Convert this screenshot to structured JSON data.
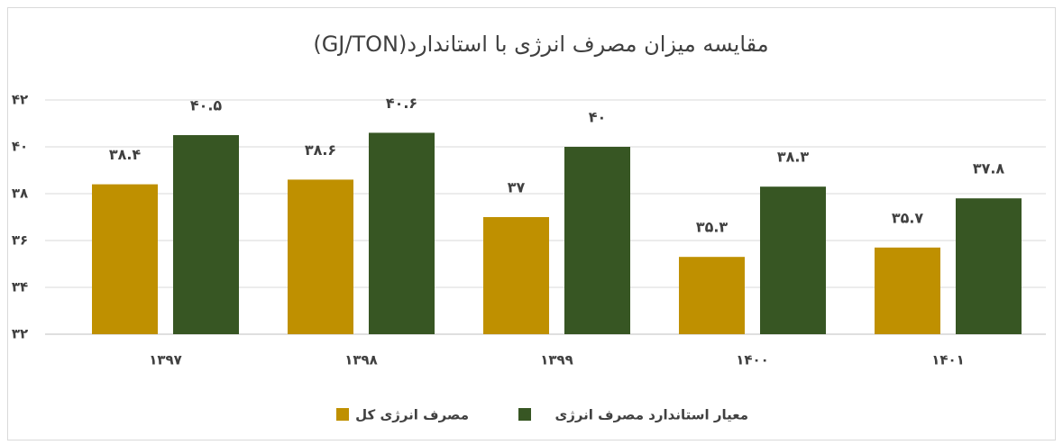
{
  "chart_data": {
    "type": "bar",
    "title": "مقایسه میزان مصرف انرژی با استاندارد(GJ/TON)",
    "categories": [
      "۱۳۹۷",
      "۱۳۹۸",
      "۱۳۹۹",
      "۱۴۰۰",
      "۱۴۰۱"
    ],
    "series": [
      {
        "name": "مصرف انرژی کل",
        "color": "#bf9000",
        "values": [
          38.4,
          38.6,
          37,
          35.3,
          35.7
        ],
        "value_labels": [
          "۳۸.۴",
          "۳۸.۶",
          "۳۷",
          "۳۵.۳",
          "۳۵.۷"
        ]
      },
      {
        "name": "معیار استاندارد مصرف انرژی",
        "color": "#375623",
        "values": [
          40.5,
          40.6,
          40,
          38.3,
          37.8
        ],
        "value_labels": [
          "۴۰.۵",
          "۴۰.۶",
          "۴۰",
          "۳۸.۳",
          "۳۷.۸"
        ]
      }
    ],
    "ylim": [
      32,
      42
    ],
    "yticks": [
      {
        "value": 32,
        "label": "۳۲"
      },
      {
        "value": 34,
        "label": "۳۴"
      },
      {
        "value": 36,
        "label": "۳۶"
      },
      {
        "value": 38,
        "label": "۳۸"
      },
      {
        "value": 40,
        "label": "۴۰"
      },
      {
        "value": 42,
        "label": "۴۲"
      }
    ],
    "grid": true,
    "legend": "bottom"
  }
}
